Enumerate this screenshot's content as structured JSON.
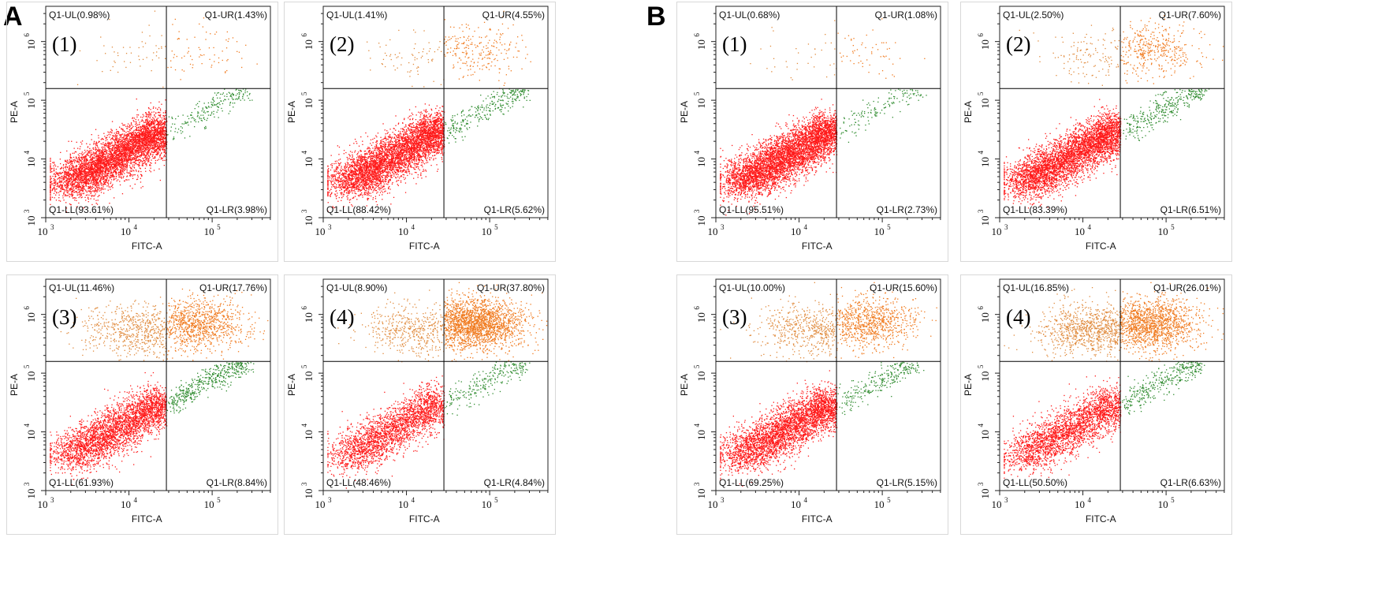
{
  "figure": {
    "groups": [
      {
        "label": "A"
      },
      {
        "label": "B"
      }
    ]
  },
  "colors": {
    "q_ll": "#ff1a1a",
    "q_lr": "#2e8b2e",
    "q_ul": "#e08a3c",
    "q_ur": "#f07a1e",
    "axis": "#222222",
    "quadrant_line": "#000000"
  },
  "chart_data": [
    {
      "type": "scatter",
      "group": "A",
      "panel_label": "(1)",
      "xlabel": "FITC-A",
      "ylabel": "PE-A",
      "xlim_log10": [
        3,
        5.7
      ],
      "ylim_log10": [
        3,
        6.6
      ],
      "gate_log10": {
        "x": 4.45,
        "y": 5.2
      },
      "x_ticks": [
        "10",
        "10",
        "10"
      ],
      "x_tick_exponents": [
        "3",
        "4",
        "5"
      ],
      "y_ticks": [
        "10",
        "10",
        "10",
        "10"
      ],
      "y_tick_exponents": [
        "3",
        "4",
        "5",
        "6"
      ],
      "quadrants": {
        "UL": "Q1-UL(0.98%)",
        "UR": "Q1-UR(1.43%)",
        "LL": "Q1-LL(93.61%)",
        "LR": "Q1-LR(3.98%)"
      },
      "percent": {
        "UL": 0.98,
        "UR": 1.43,
        "LL": 93.61,
        "LR": 3.98
      }
    },
    {
      "type": "scatter",
      "group": "A",
      "panel_label": "(2)",
      "xlabel": "FITC-A",
      "ylabel": "PE-A",
      "xlim_log10": [
        3,
        5.7
      ],
      "ylim_log10": [
        3,
        6.6
      ],
      "gate_log10": {
        "x": 4.45,
        "y": 5.2
      },
      "x_ticks": [
        "10",
        "10",
        "10"
      ],
      "x_tick_exponents": [
        "3",
        "4",
        "5"
      ],
      "y_ticks": [
        "10",
        "10",
        "10",
        "10"
      ],
      "y_tick_exponents": [
        "3",
        "4",
        "5",
        "6"
      ],
      "quadrants": {
        "UL": "Q1-UL(1.41%)",
        "UR": "Q1-UR(4.55%)",
        "LL": "Q1-LL(88.42%)",
        "LR": "Q1-LR(5.62%)"
      },
      "percent": {
        "UL": 1.41,
        "UR": 4.55,
        "LL": 88.42,
        "LR": 5.62
      }
    },
    {
      "type": "scatter",
      "group": "A",
      "panel_label": "(3)",
      "xlabel": "FITC-A",
      "ylabel": "PE-A",
      "xlim_log10": [
        3,
        5.7
      ],
      "ylim_log10": [
        3,
        6.6
      ],
      "gate_log10": {
        "x": 4.45,
        "y": 5.2
      },
      "x_ticks": [
        "10",
        "10",
        "10"
      ],
      "x_tick_exponents": [
        "3",
        "4",
        "5"
      ],
      "y_ticks": [
        "10",
        "10",
        "10",
        "10"
      ],
      "y_tick_exponents": [
        "3",
        "4",
        "5",
        "6"
      ],
      "quadrants": {
        "UL": "Q1-UL(11.46%)",
        "UR": "Q1-UR(17.76%)",
        "LL": "Q1-LL(61.93%)",
        "LR": "Q1-LR(8.84%)"
      },
      "percent": {
        "UL": 11.46,
        "UR": 17.76,
        "LL": 61.93,
        "LR": 8.84
      }
    },
    {
      "type": "scatter",
      "group": "A",
      "panel_label": "(4)",
      "xlabel": "FITC-A",
      "ylabel": "PE-A",
      "xlim_log10": [
        3,
        5.7
      ],
      "ylim_log10": [
        3,
        6.6
      ],
      "gate_log10": {
        "x": 4.45,
        "y": 5.2
      },
      "x_ticks": [
        "10",
        "10",
        "10"
      ],
      "x_tick_exponents": [
        "3",
        "4",
        "5"
      ],
      "y_ticks": [
        "10",
        "10",
        "10",
        "10"
      ],
      "y_tick_exponents": [
        "3",
        "4",
        "5",
        "6"
      ],
      "quadrants": {
        "UL": "Q1-UL(8.90%)",
        "UR": "Q1-UR(37.80%)",
        "LL": "Q1-LL(48.46%)",
        "LR": "Q1-LR(4.84%)"
      },
      "percent": {
        "UL": 8.9,
        "UR": 37.8,
        "LL": 48.46,
        "LR": 4.84
      }
    },
    {
      "type": "scatter",
      "group": "B",
      "panel_label": "(1)",
      "xlabel": "FITC-A",
      "ylabel": "PE-A",
      "xlim_log10": [
        3,
        5.7
      ],
      "ylim_log10": [
        3,
        6.6
      ],
      "gate_log10": {
        "x": 4.45,
        "y": 5.2
      },
      "x_ticks": [
        "10",
        "10",
        "10"
      ],
      "x_tick_exponents": [
        "3",
        "4",
        "5"
      ],
      "y_ticks": [
        "10",
        "10",
        "10",
        "10"
      ],
      "y_tick_exponents": [
        "3",
        "4",
        "5",
        "6"
      ],
      "quadrants": {
        "UL": "Q1-UL(0.68%)",
        "UR": "Q1-UR(1.08%)",
        "LL": "Q1-LL(95.51%)",
        "LR": "Q1-LR(2.73%)"
      },
      "percent": {
        "UL": 0.68,
        "UR": 1.08,
        "LL": 95.51,
        "LR": 2.73
      }
    },
    {
      "type": "scatter",
      "group": "B",
      "panel_label": "(2)",
      "xlabel": "FITC-A",
      "ylabel": "PE-A",
      "xlim_log10": [
        3,
        5.7
      ],
      "ylim_log10": [
        3,
        6.6
      ],
      "gate_log10": {
        "x": 4.45,
        "y": 5.2
      },
      "x_ticks": [
        "10",
        "10",
        "10"
      ],
      "x_tick_exponents": [
        "3",
        "4",
        "5"
      ],
      "y_ticks": [
        "10",
        "10",
        "10",
        "10"
      ],
      "y_tick_exponents": [
        "3",
        "4",
        "5",
        "6"
      ],
      "quadrants": {
        "UL": "Q1-UL(2.50%)",
        "UR": "Q1-UR(7.60%)",
        "LL": "Q1-LL(83.39%)",
        "LR": "Q1-LR(6.51%)"
      },
      "percent": {
        "UL": 2.5,
        "UR": 7.6,
        "LL": 83.39,
        "LR": 6.51
      }
    },
    {
      "type": "scatter",
      "group": "B",
      "panel_label": "(3)",
      "xlabel": "FITC-A",
      "ylabel": "PE-A",
      "xlim_log10": [
        3,
        5.7
      ],
      "ylim_log10": [
        3,
        6.6
      ],
      "gate_log10": {
        "x": 4.45,
        "y": 5.2
      },
      "x_ticks": [
        "10",
        "10",
        "10"
      ],
      "x_tick_exponents": [
        "3",
        "4",
        "5"
      ],
      "y_ticks": [
        "10",
        "10",
        "10",
        "10"
      ],
      "y_tick_exponents": [
        "3",
        "4",
        "5",
        "6"
      ],
      "quadrants": {
        "UL": "Q1-UL(10.00%)",
        "UR": "Q1-UR(15.60%)",
        "LL": "Q1-LL(69.25%)",
        "LR": "Q1-LR(5.15%)"
      },
      "percent": {
        "UL": 10.0,
        "UR": 15.6,
        "LL": 69.25,
        "LR": 5.15
      }
    },
    {
      "type": "scatter",
      "group": "B",
      "panel_label": "(4)",
      "xlabel": "FITC-A",
      "ylabel": "PE-A",
      "xlim_log10": [
        3,
        5.7
      ],
      "ylim_log10": [
        3,
        6.6
      ],
      "gate_log10": {
        "x": 4.45,
        "y": 5.2
      },
      "x_ticks": [
        "10",
        "10",
        "10"
      ],
      "x_tick_exponents": [
        "3",
        "4",
        "5"
      ],
      "y_ticks": [
        "10",
        "10",
        "10",
        "10"
      ],
      "y_tick_exponents": [
        "3",
        "4",
        "5",
        "6"
      ],
      "quadrants": {
        "UL": "Q1-UL(16.85%)",
        "UR": "Q1-UR(26.01%)",
        "LL": "Q1-LL(50.50%)",
        "LR": "Q1-LR(6.63%)"
      },
      "percent": {
        "UL": 16.85,
        "UR": 26.01,
        "LL": 50.5,
        "LR": 6.63
      }
    }
  ]
}
